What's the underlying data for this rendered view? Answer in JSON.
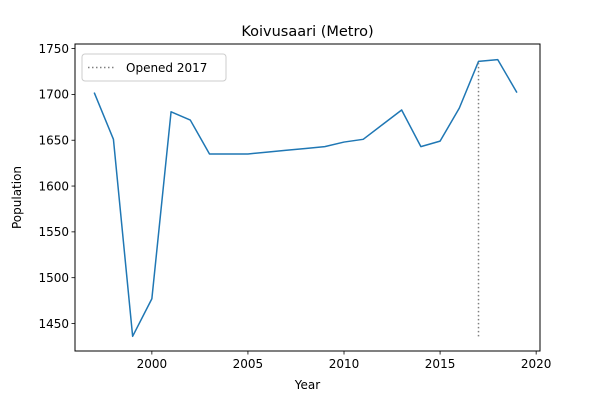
{
  "chart_data": {
    "type": "line",
    "title": "Koivusaari (Metro)",
    "xlabel": "Year",
    "ylabel": "Population",
    "xlim": [
      1996,
      2020.2
    ],
    "ylim": [
      1420,
      1755
    ],
    "xticks": [
      2000,
      2005,
      2010,
      2015,
      2020
    ],
    "yticks": [
      1450,
      1500,
      1550,
      1600,
      1650,
      1700,
      1750
    ],
    "grid": false,
    "legend_position": "upper-left",
    "series": [
      {
        "color": "#1f77b4",
        "x": [
          1997,
          1998,
          1999,
          2000,
          2001,
          2002,
          2003,
          2004,
          2005,
          2006,
          2007,
          2008,
          2009,
          2010,
          2011,
          2012,
          2013,
          2014,
          2015,
          2016,
          2017,
          2018,
          2019
        ],
        "y": [
          1702,
          1651,
          1436,
          1477,
          1681,
          1672,
          1635,
          1635,
          1635,
          1637,
          1639,
          1641,
          1643,
          1648,
          1651,
          1667,
          1683,
          1643,
          1649,
          1685,
          1736,
          1738,
          1702
        ]
      }
    ],
    "annotations": [
      {
        "type": "vline",
        "label": "Opened 2017",
        "x": 2017,
        "y_from": 1436,
        "y_to": 1736,
        "color": "#808080",
        "style": "dotted"
      }
    ]
  }
}
